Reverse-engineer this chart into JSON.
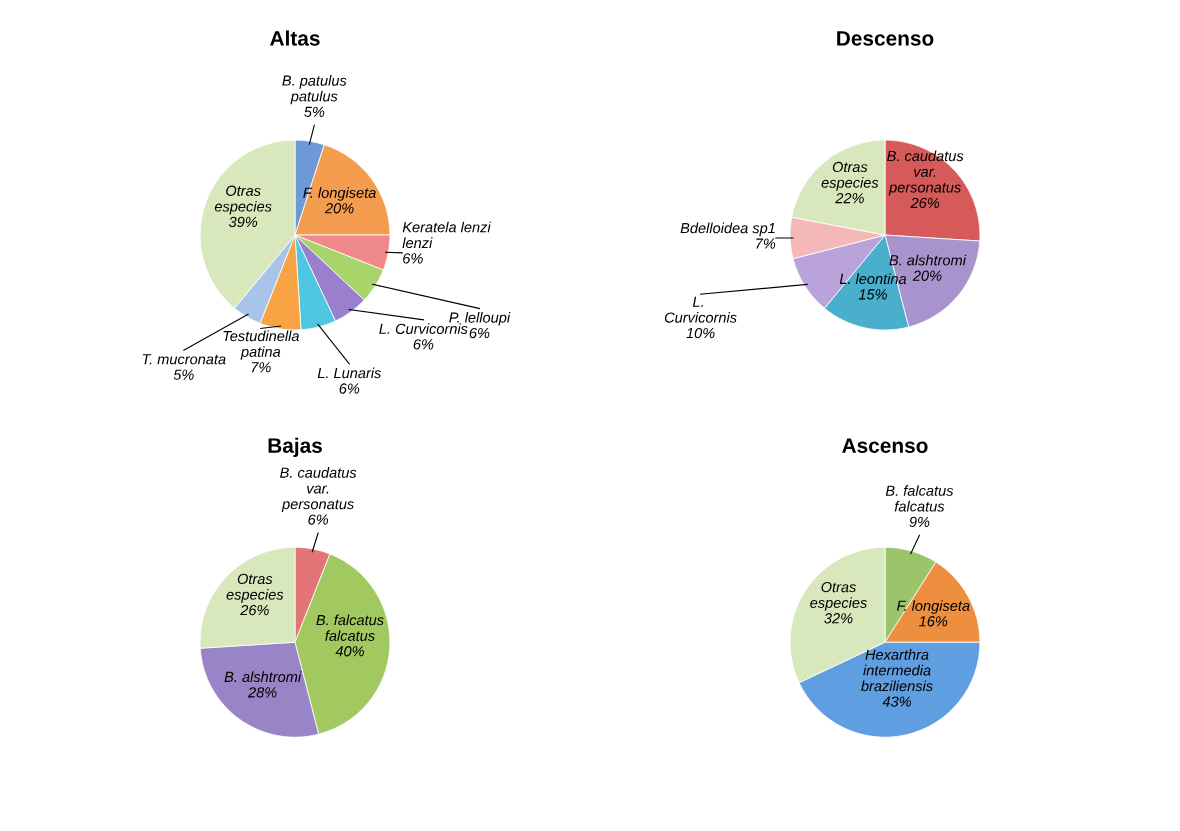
{
  "chart_data": [
    {
      "type": "pie",
      "title": "Altas",
      "categories": [
        "B. patulus patulus",
        "F. longiseta",
        "Keratela lenzi lenzi",
        "P. lelloupi",
        "L. Curvicornis",
        "L. Lunaris",
        "Testudinella patina",
        "T. mucronata",
        "Otras especies"
      ],
      "values": [
        5,
        20,
        6,
        6,
        6,
        6,
        7,
        5,
        39
      ],
      "value_labels": [
        "5%",
        "20%",
        "6%",
        "6%",
        "6%",
        "6%",
        "7%",
        "5%",
        "39%"
      ],
      "colors": [
        "#6f98d8",
        "#f59d4f",
        "#f08a8a",
        "#a8d46a",
        "#9b7fcf",
        "#4fc7e0",
        "#f9a444",
        "#a9c4ea",
        "#d8e8bc"
      ]
    },
    {
      "type": "pie",
      "title": "Descenso",
      "categories": [
        "B. caudatus var. personatus",
        "B. alshtromi",
        "L. leontina",
        "L.  Curvicornis",
        "Bdelloidea sp1",
        "Otras especies"
      ],
      "values": [
        26,
        20,
        15,
        10,
        7,
        22
      ],
      "value_labels": [
        "26%",
        "20%",
        "15%",
        "10%",
        "7%",
        "22%"
      ],
      "colors": [
        "#d65a5a",
        "#a993cc",
        "#49afcc",
        "#b9a3da",
        "#f4b8b8",
        "#d8e8bc"
      ]
    },
    {
      "type": "pie",
      "title": "Bajas",
      "categories": [
        "B. caudatus var. personatus",
        "B. falcatus falcatus",
        "B. alshtromi",
        "Otras especies"
      ],
      "values": [
        6,
        40,
        28,
        26
      ],
      "value_labels": [
        "6%",
        "40%",
        "28%",
        "26%"
      ],
      "colors": [
        "#e27575",
        "#a2c95f",
        "#9a84c8",
        "#d8e8bc"
      ]
    },
    {
      "type": "pie",
      "title": "Ascenso",
      "categories": [
        "B. falcatus falcatus",
        "F. longiseta",
        "Hexarthra intermedia braziliensis",
        "Otras especies"
      ],
      "values": [
        9,
        16,
        43,
        32
      ],
      "value_labels": [
        "9%",
        "16%",
        "43%",
        "32%"
      ],
      "colors": [
        "#9cc46a",
        "#ee8f3f",
        "#5f9ee0",
        "#d8e8bc"
      ]
    }
  ]
}
